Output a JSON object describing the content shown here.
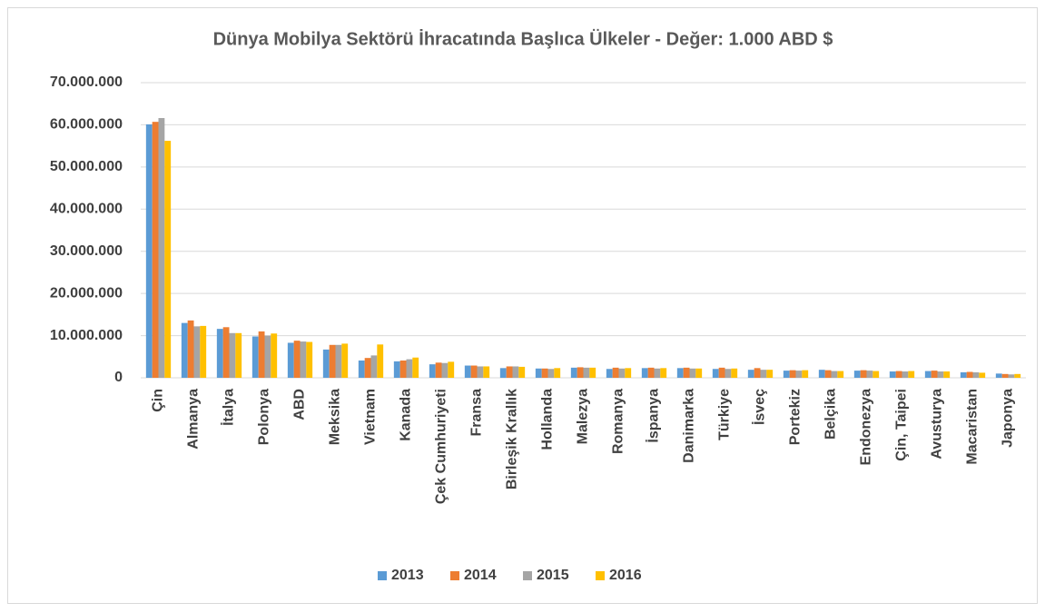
{
  "chart_data": {
    "type": "bar",
    "title": "Dünya Mobilya Sektörü İhracatında Başlıca Ülkeler - Değer: 1.000 ABD $",
    "categories": [
      "Çin",
      "Almanya",
      "İtalya",
      "Polonya",
      "ABD",
      "Meksika",
      "Vietnam",
      "Kanada",
      "Çek Cumhuriyeti",
      "Fransa",
      "Birleşik Krallık",
      "Hollanda",
      "Malezya",
      "Romanya",
      "İspanya",
      "Danimarka",
      "Türkiye",
      "İsveç",
      "Portekiz",
      "Belçika",
      "Endonezya",
      "Çin, Taipei",
      "Avusturya",
      "Macaristan",
      "Japonya"
    ],
    "series": [
      {
        "name": "2013",
        "color": "#5b9bd5",
        "values": [
          60100000,
          13000000,
          11600000,
          9800000,
          8300000,
          6700000,
          4100000,
          3900000,
          3200000,
          2900000,
          2300000,
          2200000,
          2400000,
          2100000,
          2300000,
          2300000,
          2100000,
          1900000,
          1700000,
          1900000,
          1700000,
          1500000,
          1600000,
          1300000,
          1000000
        ]
      },
      {
        "name": "2014",
        "color": "#ed7d31",
        "values": [
          60700000,
          13600000,
          12000000,
          11000000,
          8800000,
          7800000,
          4700000,
          4100000,
          3600000,
          2900000,
          2700000,
          2200000,
          2500000,
          2400000,
          2400000,
          2400000,
          2400000,
          2300000,
          1800000,
          1800000,
          1800000,
          1600000,
          1700000,
          1400000,
          900000
        ]
      },
      {
        "name": "2015",
        "color": "#a5a5a5",
        "values": [
          61600000,
          12200000,
          10600000,
          10000000,
          8600000,
          7800000,
          5300000,
          4400000,
          3500000,
          2700000,
          2700000,
          2100000,
          2400000,
          2200000,
          2200000,
          2200000,
          2100000,
          1900000,
          1700000,
          1600000,
          1700000,
          1500000,
          1500000,
          1300000,
          800000
        ]
      },
      {
        "name": "2016",
        "color": "#ffc000",
        "values": [
          56200000,
          12300000,
          10600000,
          10500000,
          8500000,
          8100000,
          7900000,
          4800000,
          3800000,
          2700000,
          2600000,
          2300000,
          2400000,
          2300000,
          2300000,
          2200000,
          2200000,
          1900000,
          1800000,
          1600000,
          1600000,
          1600000,
          1500000,
          1200000,
          900000
        ]
      }
    ],
    "ylim": [
      0,
      70000000
    ],
    "yticks": [
      0,
      {
        "value": 10000000,
        "label": "10.000.000"
      },
      {
        "value": 20000000,
        "label": "20.000.000"
      },
      {
        "value": 30000000,
        "label": "30.000.000"
      },
      {
        "value": 40000000,
        "label": "40.000.000"
      },
      {
        "value": 50000000,
        "label": "50.000.000"
      },
      {
        "value": 60000000,
        "label": "60.000.000"
      },
      {
        "value": 70000000,
        "label": "70.000.000"
      }
    ],
    "grid": true,
    "legend": "bottom"
  }
}
